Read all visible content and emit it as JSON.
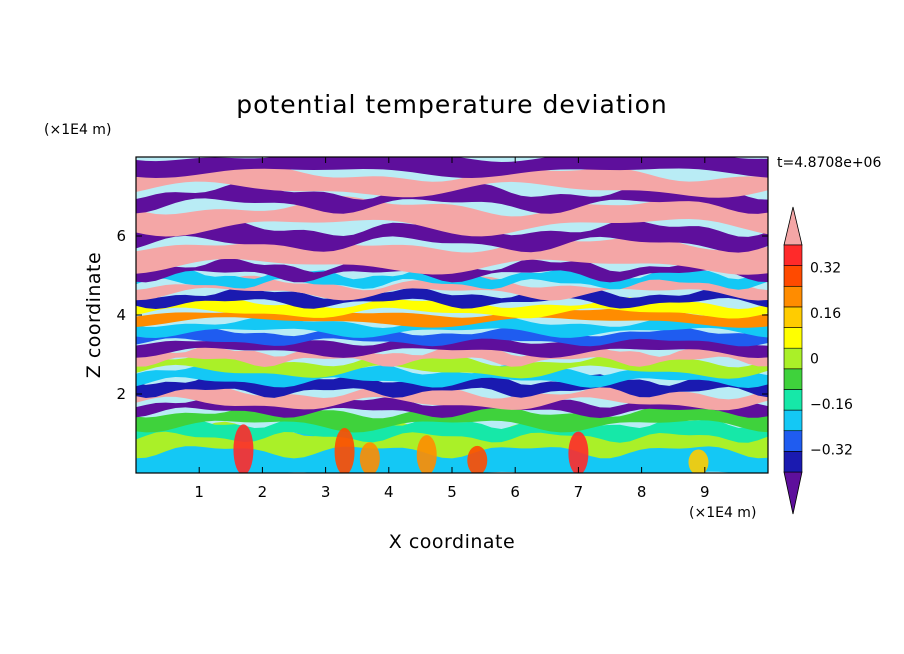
{
  "chart_data": {
    "type": "heatmap",
    "title": "potential temperature deviation",
    "xlabel": "X coordinate",
    "ylabel": "Z coordinate",
    "x_unit": "(×1E4 m)",
    "y_unit": "(×1E4 m)",
    "time_label": "t=4.8708e+06",
    "xlim": [
      0,
      10
    ],
    "ylim": [
      0,
      8
    ],
    "x_ticks": [
      "1",
      "2",
      "3",
      "4",
      "5",
      "6",
      "7",
      "8",
      "9"
    ],
    "y_ticks": [
      "2",
      "4",
      "6"
    ],
    "colorbar": {
      "levels": [
        -0.48,
        -0.4,
        -0.32,
        -0.24,
        -0.16,
        -0.08,
        0,
        0.08,
        0.16,
        0.24,
        0.32,
        0.4,
        0.48
      ],
      "tick_labels": [
        "0.32",
        "0.16",
        "0",
        "−0.16",
        "−0.32"
      ],
      "tick_values": [
        0.32,
        0.16,
        0,
        -0.16,
        -0.32
      ],
      "colors": [
        "#5e0f9c",
        "#1a1ab0",
        "#1f5cf0",
        "#14c8f5",
        "#16e8a8",
        "#3fd23c",
        "#aaf028",
        "#ffff00",
        "#ffcc00",
        "#ff8c00",
        "#ff4a00",
        "#ff2a2a",
        "#f4a6a6"
      ],
      "extend": "both"
    }
  }
}
